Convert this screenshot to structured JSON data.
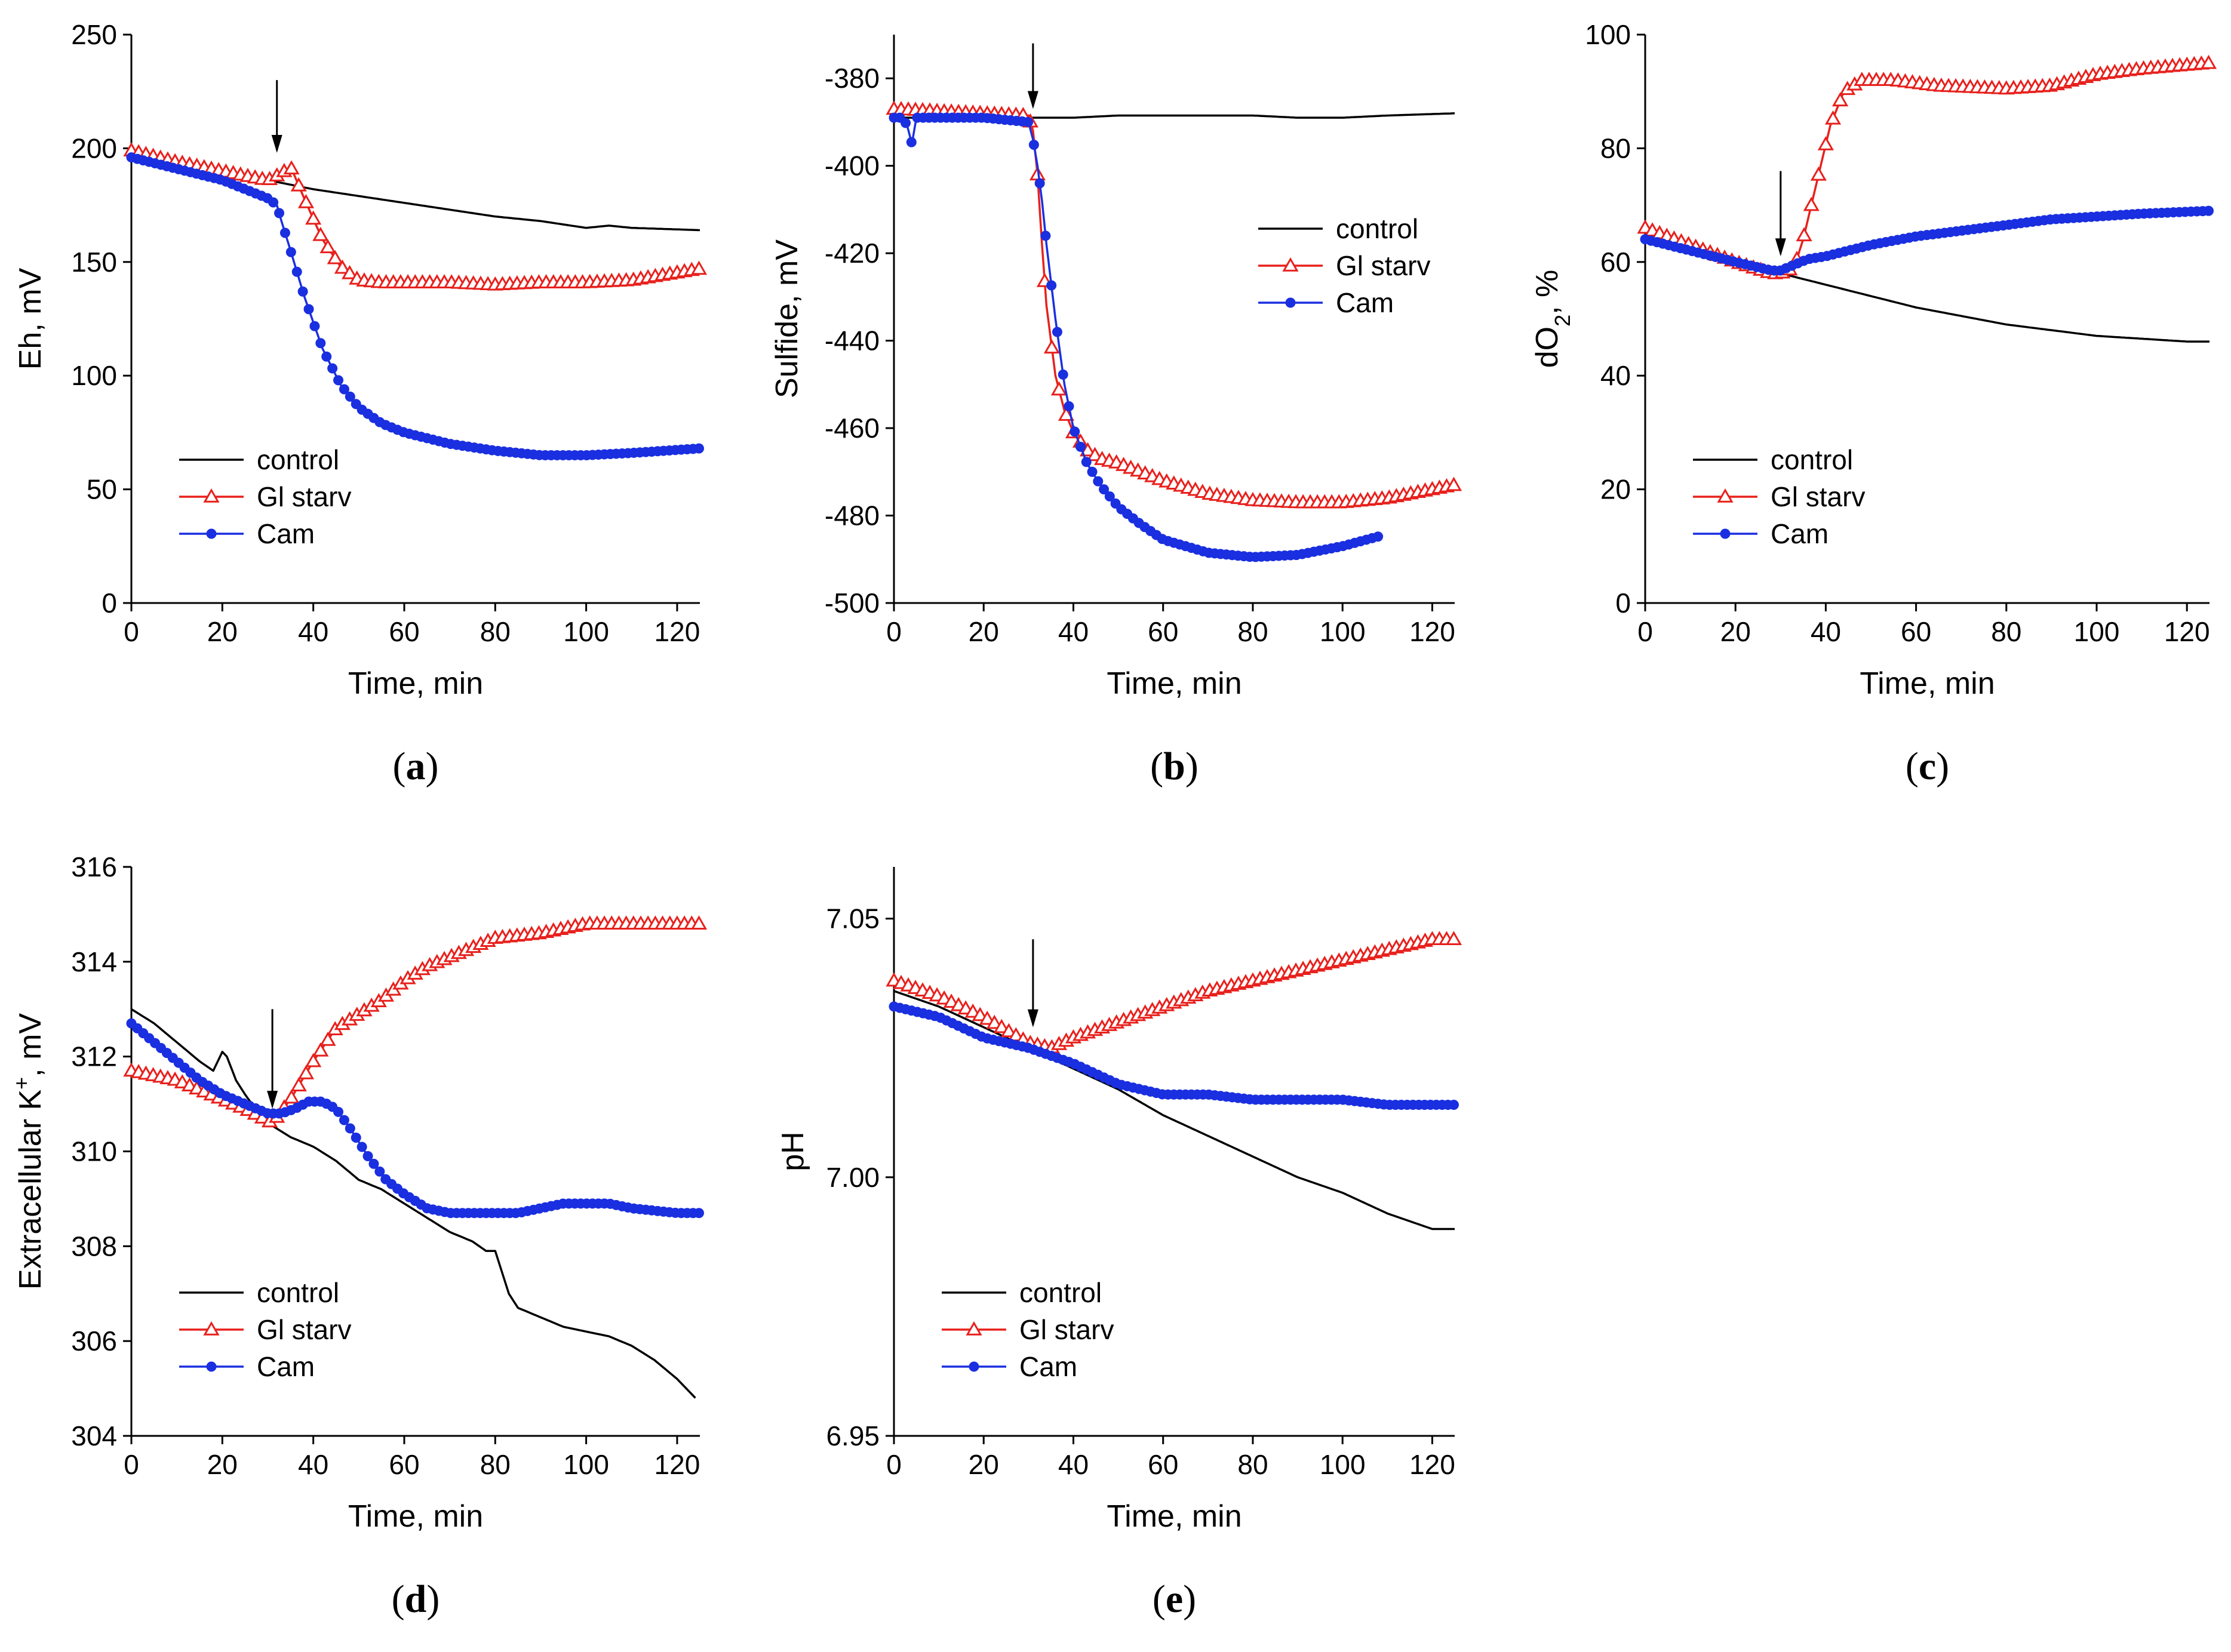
{
  "figure": {
    "legend_labels": [
      "control",
      "Gl starv",
      "Cam"
    ],
    "series_colors": {
      "control": "#000000",
      "Gl starv": "#e8201c",
      "Cam": "#1a2fe0"
    }
  },
  "chart_data": [
    {
      "id": "a",
      "type": "line",
      "panel_label": "(a)",
      "xlabel": "Time, min",
      "ylabel": "Eh, mV",
      "xlim": [
        0,
        125
      ],
      "ylim": [
        0,
        250
      ],
      "xticks": [
        0,
        20,
        40,
        60,
        80,
        100,
        120
      ],
      "yticks": [
        0,
        50,
        100,
        150,
        200,
        250
      ],
      "legend_position": "lower-left",
      "arrow": {
        "x": 32,
        "y_top": 230,
        "y_tip": 198
      },
      "series": [
        {
          "name": "control",
          "marker": "none",
          "x": [
            0,
            10,
            20,
            30,
            35,
            40,
            50,
            60,
            70,
            80,
            90,
            100,
            105,
            110,
            125
          ],
          "y": [
            197,
            193,
            189,
            186,
            184,
            182,
            179,
            176,
            173,
            170,
            168,
            165,
            166,
            165,
            164
          ]
        },
        {
          "name": "Gl starv",
          "marker": "triangle",
          "x": [
            0,
            10,
            20,
            30,
            33,
            35,
            38,
            42,
            46,
            50,
            55,
            60,
            70,
            80,
            90,
            100,
            110,
            125
          ],
          "y": [
            199,
            194,
            190,
            186,
            189,
            192,
            178,
            160,
            148,
            142,
            141,
            141,
            141,
            140,
            141,
            141,
            142,
            147
          ]
        },
        {
          "name": "Cam",
          "marker": "circle",
          "x": [
            0,
            10,
            20,
            25,
            30,
            32,
            33,
            35,
            38,
            42,
            46,
            50,
            55,
            60,
            70,
            80,
            90,
            100,
            110,
            125
          ],
          "y": [
            196,
            191,
            186,
            182,
            178,
            175,
            168,
            155,
            135,
            112,
            96,
            86,
            79,
            75,
            70,
            67,
            65,
            65,
            66,
            68
          ]
        }
      ]
    },
    {
      "id": "b",
      "type": "line",
      "panel_label": "(b)",
      "xlabel": "Time, min",
      "ylabel": "Sulfide, mV",
      "xlim": [
        0,
        125
      ],
      "ylim": [
        -500,
        -370
      ],
      "xticks": [
        0,
        20,
        40,
        60,
        80,
        100,
        120
      ],
      "yticks": [
        -500,
        -480,
        -460,
        -440,
        -420,
        -400,
        -380
      ],
      "legend_position": "upper-right",
      "arrow": {
        "x": 31,
        "y_top": -372,
        "y_tip": -387
      },
      "series": [
        {
          "name": "control",
          "marker": "none",
          "x": [
            0,
            10,
            20,
            30,
            40,
            50,
            60,
            70,
            80,
            90,
            100,
            110,
            125
          ],
          "y": [
            -389,
            -389,
            -389,
            -389,
            -389,
            -388.5,
            -388.5,
            -388.5,
            -388.5,
            -389,
            -389,
            -388.5,
            -388
          ]
        },
        {
          "name": "Gl starv",
          "marker": "triangle",
          "x": [
            0,
            10,
            20,
            30,
            31,
            32,
            33,
            34,
            36,
            38,
            40,
            43,
            46,
            50,
            55,
            60,
            70,
            80,
            90,
            100,
            110,
            125
          ],
          "y": [
            -387,
            -387.5,
            -388,
            -388.5,
            -392,
            -402,
            -418,
            -432,
            -448,
            -456,
            -461,
            -465,
            -467,
            -468,
            -470,
            -472,
            -475,
            -476.5,
            -477,
            -477,
            -476,
            -473
          ]
        },
        {
          "name": "Cam",
          "marker": "circle",
          "x": [
            0,
            2,
            3,
            4,
            5,
            10,
            20,
            30,
            31,
            32,
            33,
            34,
            36,
            38,
            40,
            43,
            46,
            50,
            55,
            60,
            70,
            80,
            90,
            100,
            109
          ],
          "y": [
            -389,
            -389,
            -391,
            -395,
            -389,
            -389,
            -389,
            -390,
            -394,
            -400,
            -408,
            -418,
            -435,
            -450,
            -460,
            -468,
            -473,
            -478,
            -482,
            -485.5,
            -488.5,
            -489.5,
            -489,
            -487,
            -484.5
          ]
        }
      ]
    },
    {
      "id": "c",
      "type": "line",
      "panel_label": "(c)",
      "xlabel": "Time, min",
      "ylabel": "dO2, %",
      "ylabel_main": "dO",
      "ylabel_sub": "2",
      "ylabel_tail": ", %",
      "xlim": [
        0,
        125
      ],
      "ylim": [
        0,
        100
      ],
      "xticks": [
        0,
        20,
        40,
        60,
        80,
        100,
        120
      ],
      "yticks": [
        0,
        20,
        40,
        60,
        80,
        100
      ],
      "legend_position": "lower-left",
      "arrow": {
        "x": 30,
        "y_top": 76,
        "y_tip": 61
      },
      "series": [
        {
          "name": "control",
          "marker": "none",
          "x": [
            0,
            10,
            20,
            30,
            40,
            50,
            60,
            70,
            80,
            90,
            100,
            110,
            120,
            125
          ],
          "y": [
            64,
            62,
            60,
            58,
            56,
            54,
            52,
            50.5,
            49,
            48,
            47,
            46.5,
            46,
            46
          ]
        },
        {
          "name": "Gl starv",
          "marker": "triangle",
          "x": [
            0,
            10,
            20,
            28,
            30,
            33,
            35,
            38,
            41,
            44,
            48,
            55,
            65,
            80,
            90,
            100,
            110,
            125
          ],
          "y": [
            66,
            63,
            60,
            58,
            58,
            59,
            64,
            74,
            84,
            90,
            92,
            92,
            91,
            90.5,
            91,
            93,
            94,
            95
          ]
        },
        {
          "name": "Cam",
          "marker": "circle",
          "x": [
            0,
            10,
            20,
            28,
            30,
            33,
            36,
            40,
            50,
            60,
            70,
            80,
            90,
            100,
            110,
            125
          ],
          "y": [
            64,
            62,
            60,
            58.5,
            58.5,
            59.5,
            60.5,
            61,
            63,
            64.5,
            65.5,
            66.5,
            67.5,
            68,
            68.5,
            69
          ]
        }
      ]
    },
    {
      "id": "d",
      "type": "line",
      "panel_label": "(d)",
      "xlabel": "Time, min",
      "ylabel": "Extracellular K+, mV",
      "ylabel_main": "Extracellular K",
      "ylabel_sup": "+",
      "ylabel_tail": ", mV",
      "xlim": [
        0,
        125
      ],
      "ylim": [
        304,
        316
      ],
      "xticks": [
        0,
        20,
        40,
        60,
        80,
        100,
        120
      ],
      "yticks": [
        304,
        306,
        308,
        310,
        312,
        314,
        316
      ],
      "legend_position": "lower-left",
      "arrow": {
        "x": 31,
        "y_top": 313,
        "y_tip": 310.9
      },
      "series": [
        {
          "name": "control",
          "marker": "none",
          "x": [
            0,
            5,
            10,
            15,
            18,
            20,
            21,
            23,
            25,
            28,
            30,
            35,
            40,
            45,
            50,
            55,
            60,
            65,
            70,
            75,
            78,
            80,
            81,
            83,
            85,
            90,
            95,
            100,
            105,
            110,
            115,
            120,
            124
          ],
          "y": [
            313,
            312.7,
            312.3,
            311.9,
            311.7,
            312.1,
            312,
            311.5,
            311.2,
            310.8,
            310.6,
            310.3,
            310.1,
            309.8,
            309.4,
            309.2,
            308.9,
            308.6,
            308.3,
            308.1,
            307.9,
            307.9,
            307.6,
            307,
            306.7,
            306.5,
            306.3,
            306.2,
            306.1,
            305.9,
            305.6,
            305.2,
            304.8
          ]
        },
        {
          "name": "Gl starv",
          "marker": "triangle",
          "x": [
            0,
            10,
            20,
            25,
            31,
            35,
            40,
            45,
            50,
            55,
            60,
            65,
            70,
            75,
            80,
            90,
            100,
            110,
            120,
            125
          ],
          "y": [
            311.7,
            311.5,
            311.1,
            310.9,
            310.6,
            311.1,
            311.9,
            312.6,
            312.9,
            313.2,
            313.6,
            313.9,
            314.1,
            314.3,
            314.5,
            314.6,
            314.8,
            314.8,
            314.8,
            314.8
          ]
        },
        {
          "name": "Cam",
          "marker": "circle",
          "x": [
            0,
            5,
            10,
            15,
            20,
            25,
            30,
            33,
            36,
            39,
            42,
            45,
            48,
            52,
            56,
            60,
            65,
            70,
            75,
            80,
            85,
            90,
            95,
            100,
            105,
            110,
            115,
            120,
            125
          ],
          "y": [
            312.7,
            312.3,
            311.9,
            311.5,
            311.2,
            311,
            310.8,
            310.8,
            310.9,
            311.05,
            311.05,
            310.9,
            310.5,
            309.9,
            309.4,
            309.1,
            308.8,
            308.7,
            308.7,
            308.7,
            308.7,
            308.8,
            308.9,
            308.9,
            308.9,
            308.8,
            308.75,
            308.7,
            308.7
          ]
        }
      ]
    },
    {
      "id": "e",
      "type": "line",
      "panel_label": "(e)",
      "xlabel": "Time, min",
      "ylabel": "pH",
      "xlim": [
        0,
        125
      ],
      "ylim": [
        6.95,
        7.06
      ],
      "xticks": [
        0,
        20,
        40,
        60,
        80,
        100,
        120
      ],
      "yticks": [
        6.95,
        7.0,
        7.05
      ],
      "ytick_labels": [
        "6.95",
        "7.00",
        "7.05"
      ],
      "legend_position": "lower-left",
      "arrow": {
        "x": 31,
        "y_top": 7.046,
        "y_tip": 7.029
      },
      "series": [
        {
          "name": "control",
          "marker": "none",
          "x": [
            0,
            10,
            20,
            30,
            40,
            50,
            60,
            70,
            80,
            90,
            100,
            110,
            120,
            125
          ],
          "y": [
            7.036,
            7.033,
            7.029,
            7.025,
            7.021,
            7.017,
            7.012,
            7.008,
            7.004,
            7.0,
            6.997,
            6.993,
            6.99,
            6.99
          ]
        },
        {
          "name": "Gl starv",
          "marker": "triangle",
          "x": [
            0,
            10,
            20,
            30,
            35,
            40,
            50,
            60,
            70,
            80,
            90,
            100,
            110,
            120,
            125
          ],
          "y": [
            7.038,
            7.035,
            7.031,
            7.026,
            7.025,
            7.027,
            7.03,
            7.033,
            7.036,
            7.038,
            7.04,
            7.042,
            7.044,
            7.046,
            7.046
          ]
        },
        {
          "name": "Cam",
          "marker": "circle",
          "x": [
            0,
            10,
            20,
            30,
            40,
            50,
            60,
            70,
            80,
            90,
            100,
            110,
            120,
            125
          ],
          "y": [
            7.033,
            7.031,
            7.027,
            7.025,
            7.022,
            7.018,
            7.016,
            7.016,
            7.015,
            7.015,
            7.015,
            7.014,
            7.014,
            7.014
          ]
        }
      ]
    }
  ]
}
